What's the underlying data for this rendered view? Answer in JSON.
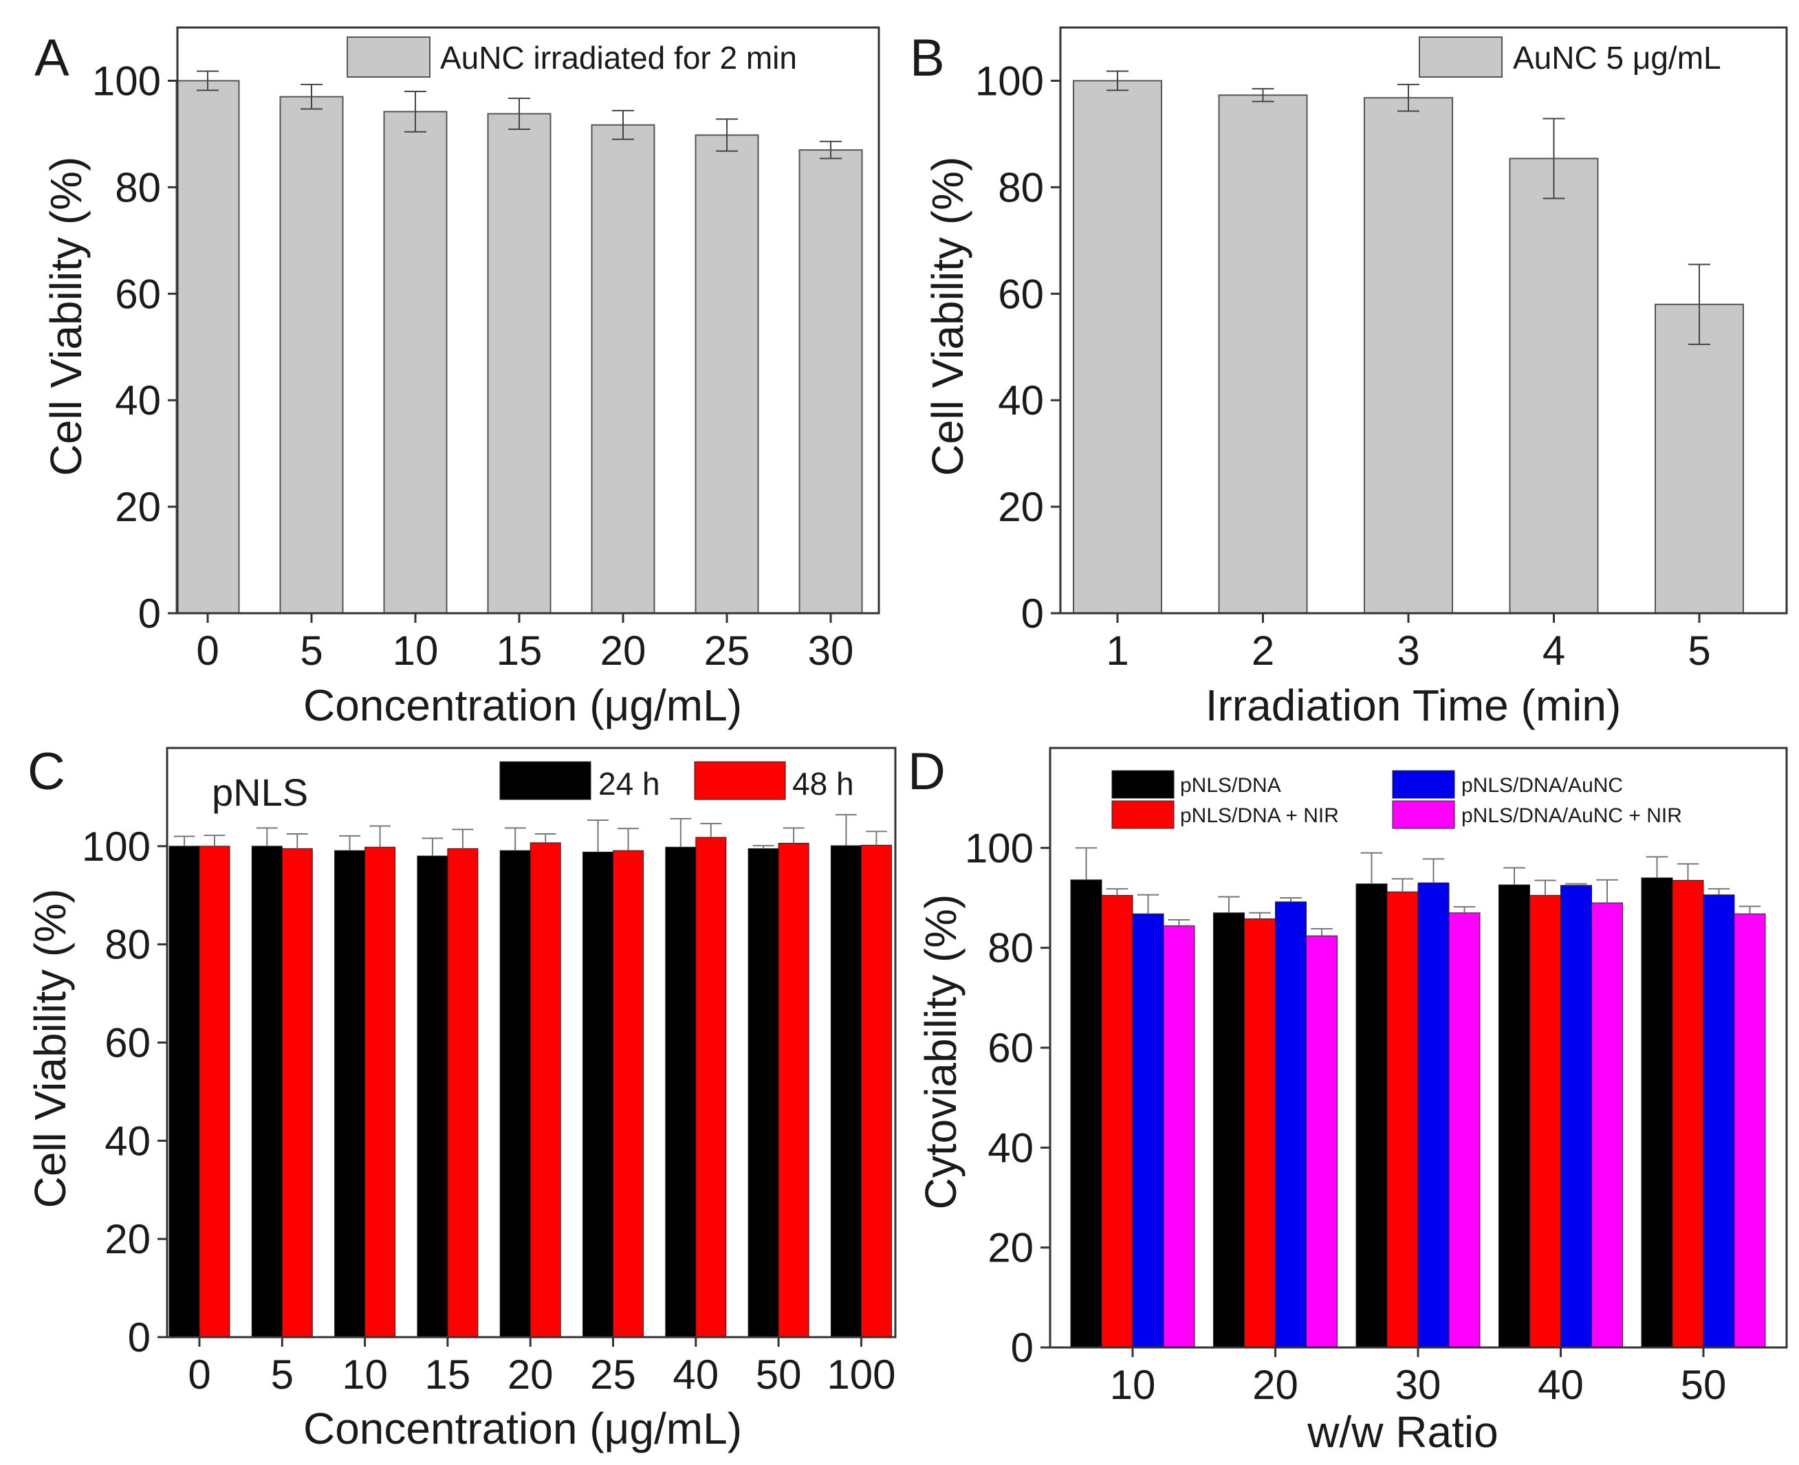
{
  "colors": {
    "gray": "#c8c8c8",
    "black": "#000000",
    "red": "#ff0000",
    "blue": "#0000ee",
    "magenta": "#ff00ff",
    "axis": "#333333"
  },
  "chart_data": [
    {
      "panel": "A",
      "type": "bar",
      "xlabel": "Concentration (μg/mL)",
      "ylabel": "Cell Viability (%)",
      "ylim": [
        0,
        110
      ],
      "yticks": [
        0,
        20,
        40,
        60,
        80,
        100
      ],
      "categories": [
        "0",
        "5",
        "10",
        "15",
        "20",
        "25",
        "30"
      ],
      "series": [
        {
          "name": "AuNC irradiated for 2 min",
          "color": "#c8c8c8",
          "values": [
            100,
            97,
            94.2,
            93.8,
            91.7,
            89.8,
            87
          ],
          "errors": [
            1.8,
            2.3,
            3.8,
            2.9,
            2.7,
            3,
            1.6
          ]
        }
      ],
      "legend_position": "top-right"
    },
    {
      "panel": "B",
      "type": "bar",
      "xlabel": "Irradiation Time (min)",
      "ylabel": "Cell Viability (%)",
      "ylim": [
        0,
        110
      ],
      "yticks": [
        0,
        20,
        40,
        60,
        80,
        100
      ],
      "categories": [
        "1",
        "2",
        "3",
        "4",
        "5"
      ],
      "series": [
        {
          "name": "AuNC 5 μg/mL",
          "color": "#c8c8c8",
          "values": [
            100,
            97.3,
            96.8,
            85.4,
            58
          ],
          "errors": [
            1.8,
            1.2,
            2.5,
            7.5,
            7.5
          ]
        }
      ],
      "legend_position": "top-right"
    },
    {
      "panel": "C",
      "type": "bar",
      "annotation": "pNLS",
      "xlabel": "Concentration (μg/mL)",
      "ylabel": "Cell Viability (%)",
      "ylim": [
        0,
        120
      ],
      "yticks": [
        0,
        20,
        40,
        60,
        80,
        100
      ],
      "categories": [
        "0",
        "5",
        "10",
        "15",
        "20",
        "25",
        "40",
        "50",
        "100"
      ],
      "series": [
        {
          "name": "24 h",
          "color": "#000000",
          "values": [
            100,
            100,
            99.1,
            98,
            99.1,
            98.8,
            99.8,
            99.5,
            100.1
          ],
          "errors": [
            2,
            3.7,
            3,
            3.6,
            4.6,
            6.5,
            5.8,
            0.6,
            6.3
          ]
        },
        {
          "name": "48 h",
          "color": "#ff0000",
          "values": [
            100,
            99.5,
            99.8,
            99.5,
            100.7,
            99.1,
            101.8,
            100.6,
            100.2
          ],
          "errors": [
            2.2,
            3,
            4.3,
            3.9,
            1.8,
            4.5,
            2.8,
            3.1,
            2.8
          ]
        }
      ],
      "legend_position": "top-right"
    },
    {
      "panel": "D",
      "type": "bar",
      "xlabel": "w/w Ratio",
      "ylabel": "Cytoviability (%)",
      "ylim": [
        0,
        120
      ],
      "yticks": [
        0,
        20,
        40,
        60,
        80,
        100
      ],
      "categories": [
        "10",
        "20",
        "30",
        "40",
        "50"
      ],
      "series": [
        {
          "name": "pNLS/DNA",
          "color": "#000000",
          "values": [
            93.6,
            87,
            92.8,
            92.6,
            94
          ],
          "errors": [
            6.4,
            3.2,
            6.2,
            3.4,
            4.2
          ]
        },
        {
          "name": "pNLS/DNA + NIR",
          "color": "#ff0000",
          "values": [
            90.5,
            85.8,
            91.2,
            90.5,
            93.5
          ],
          "errors": [
            1.3,
            1.2,
            2.6,
            3,
            3.3
          ]
        },
        {
          "name": "pNLS/DNA/AuNC",
          "color": "#0000ee",
          "values": [
            86.8,
            89.2,
            93,
            92.5,
            90.6
          ],
          "errors": [
            3.8,
            0.8,
            4.8,
            0.3,
            1.2
          ]
        },
        {
          "name": "pNLS/DNA/AuNC + NIR",
          "color": "#ff00ff",
          "values": [
            84.4,
            82.4,
            87,
            89,
            86.8
          ],
          "errors": [
            1.2,
            1.4,
            1.2,
            4.6,
            1.5
          ]
        }
      ],
      "legend_position": "top"
    }
  ]
}
